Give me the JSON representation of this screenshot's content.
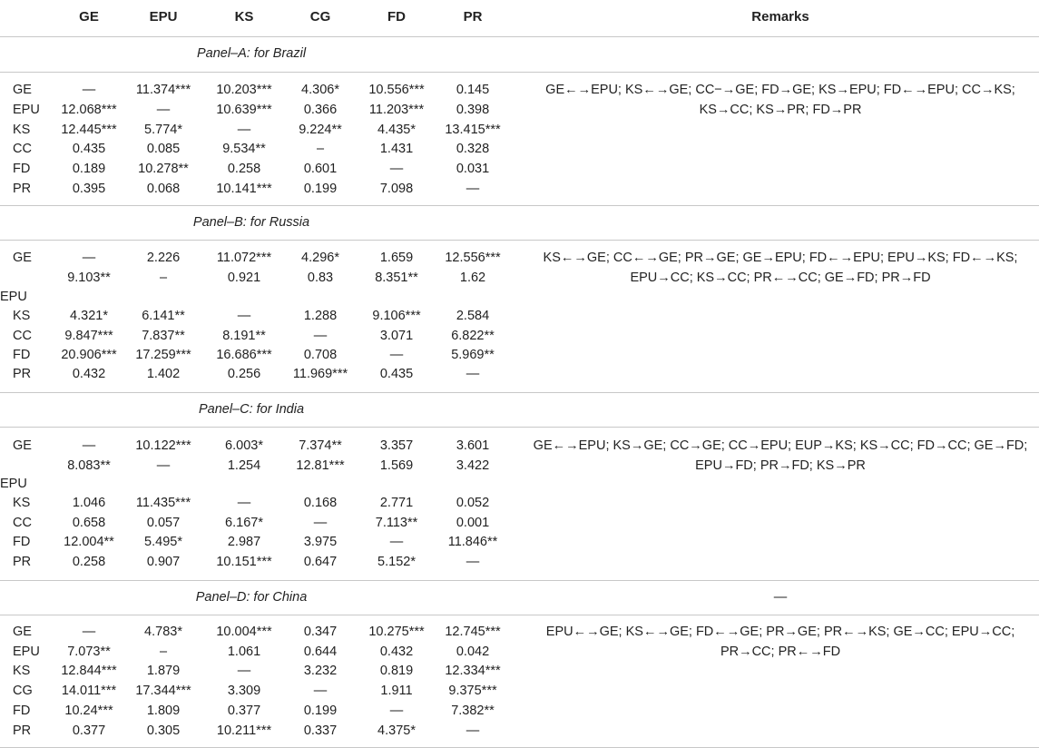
{
  "headers": [
    "GE",
    "EPU",
    "KS",
    "CG",
    "FD",
    "PR",
    "Remarks"
  ],
  "panels": [
    {
      "title": "Panel–A: for Brazil",
      "remark_header": "",
      "rows": [
        {
          "label": "GE",
          "cells": [
            "—",
            "11.374***",
            "10.203***",
            "4.306*",
            "10.556***",
            "0.145"
          ]
        },
        {
          "label": "EPU",
          "cells": [
            "12.068***",
            "—",
            "10.639***",
            "0.366",
            "11.203***",
            "0.398"
          ]
        },
        {
          "label": "KS",
          "cells": [
            "12.445***",
            "5.774*",
            "—",
            "9.224**",
            "4.435*",
            "13.415***"
          ]
        },
        {
          "label": "CC",
          "cells": [
            "0.435",
            "0.085",
            "9.534**",
            "–",
            "1.431",
            "0.328"
          ]
        },
        {
          "label": "FD",
          "cells": [
            "0.189",
            "10.278**",
            "0.258",
            "0.601",
            "—",
            "0.031"
          ]
        },
        {
          "label": "PR",
          "cells": [
            "0.395",
            "0.068",
            "10.141***",
            "0.199",
            "7.098",
            "—"
          ]
        }
      ],
      "remarks": [
        "GE←→EPU; KS←→GE; CC−→GE; FD→GE; KS→EPU; FD←→EPU; CC→KS;",
        "KS→CC; KS→PR; FD→PR"
      ]
    },
    {
      "title": "Panel–B: for Russia",
      "remark_header": "",
      "rows": [
        {
          "label": "GE",
          "cells": [
            "—",
            "2.226",
            "11.072***",
            "4.296*",
            "1.659",
            "12.556***"
          ]
        },
        {
          "label": "",
          "cells": [
            "9.103**",
            "–",
            "0.921",
            "0.83",
            "8.351**",
            "1.62"
          ]
        },
        {
          "label": "EPU",
          "cells": [
            "",
            "",
            "",
            "",
            "",
            ""
          ]
        },
        {
          "label": "KS",
          "cells": [
            "4.321*",
            "6.141**",
            "—",
            "1.288",
            "9.106***",
            "2.584"
          ]
        },
        {
          "label": "CC",
          "cells": [
            "9.847***",
            "7.837**",
            "8.191**",
            "—",
            "3.071",
            "6.822**"
          ]
        },
        {
          "label": "FD",
          "cells": [
            "20.906***",
            "17.259***",
            "16.686***",
            "0.708",
            "—",
            "5.969**"
          ]
        },
        {
          "label": "PR",
          "cells": [
            "0.432",
            "1.402",
            "0.256",
            "11.969***",
            "0.435",
            "—"
          ]
        }
      ],
      "remarks": [
        "KS←→GE; CC←→GE; PR→GE; GE→EPU; FD←→EPU; EPU→KS; FD←→KS;",
        "EPU→CC; KS→CC; PR←→CC; GE→FD; PR→FD"
      ]
    },
    {
      "title": "Panel–C: for India",
      "remark_header": "",
      "rows": [
        {
          "label": "GE",
          "cells": [
            "—",
            "10.122***",
            "6.003*",
            "7.374**",
            "3.357",
            "3.601"
          ]
        },
        {
          "label": "",
          "cells": [
            "8.083**",
            "—",
            "1.254",
            "12.81***",
            "1.569",
            "3.422"
          ]
        },
        {
          "label": "EPU",
          "cells": [
            "",
            "",
            "",
            "",
            "",
            ""
          ]
        },
        {
          "label": "KS",
          "cells": [
            "1.046",
            "11.435***",
            "—",
            "0.168",
            "2.771",
            "0.052"
          ]
        },
        {
          "label": "CC",
          "cells": [
            "0.658",
            "0.057",
            "6.167*",
            "—",
            "7.113**",
            "0.001"
          ]
        },
        {
          "label": "FD",
          "cells": [
            "12.004**",
            "5.495*",
            "2.987",
            "3.975",
            "—",
            "11.846**"
          ]
        },
        {
          "label": "PR",
          "cells": [
            "0.258",
            "0.907",
            "10.151***",
            "0.647",
            "5.152*",
            "—"
          ]
        }
      ],
      "remarks": [
        "GE←→EPU; KS→GE; CC→GE; CC→EPU; EUP→KS; KS→CC; FD→CC; GE→FD;",
        "EPU→FD; PR→FD; KS→PR"
      ]
    },
    {
      "title": "Panel–D: for China",
      "remark_header": "—",
      "rows": [
        {
          "label": "GE",
          "cells": [
            "—",
            "4.783*",
            "10.004***",
            "0.347",
            "10.275***",
            "12.745***"
          ]
        },
        {
          "label": "EPU",
          "cells": [
            "7.073**",
            "–",
            "1.061",
            "0.644",
            "0.432",
            "0.042"
          ]
        },
        {
          "label": "KS",
          "cells": [
            "12.844***",
            "1.879",
            "—",
            "3.232",
            "0.819",
            "12.334***"
          ]
        },
        {
          "label": "CG",
          "cells": [
            "14.011***",
            "17.344***",
            "3.309",
            "—",
            "1.911",
            "9.375***"
          ]
        },
        {
          "label": "FD",
          "cells": [
            "10.24***",
            "1.809",
            "0.377",
            "0.199",
            "—",
            "7.382**"
          ]
        },
        {
          "label": "PR",
          "cells": [
            "0.377",
            "0.305",
            "10.211***",
            "0.337",
            "4.375*",
            "—"
          ]
        }
      ],
      "remarks": [
        "EPU←→GE; KS←→GE; FD←→GE; PR→GE; PR←→KS; GE→CC; EPU→CC;",
        "PR→CC; PR←→FD"
      ]
    }
  ]
}
